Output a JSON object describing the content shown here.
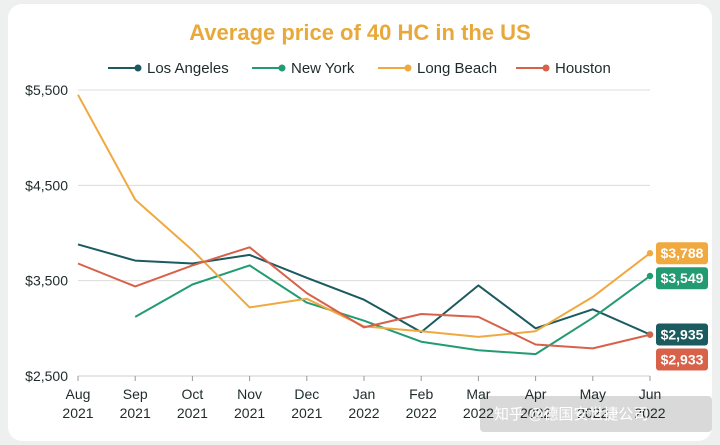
{
  "chart_data": {
    "type": "line",
    "title": "Average price of 40 HC in the US",
    "xlabel": "",
    "ylabel": "",
    "categories": [
      [
        "Aug",
        "2021"
      ],
      [
        "Sep",
        "2021"
      ],
      [
        "Oct",
        "2021"
      ],
      [
        "Nov",
        "2021"
      ],
      [
        "Dec",
        "2021"
      ],
      [
        "Jan",
        "2022"
      ],
      [
        "Feb",
        "2022"
      ],
      [
        "Mar",
        "2022"
      ],
      [
        "Apr",
        "2022"
      ],
      [
        "May",
        "2022"
      ],
      [
        "Jun",
        "2022"
      ]
    ],
    "ylim": [
      2500,
      5500
    ],
    "yticks": [
      2500,
      3500,
      4500,
      5500
    ],
    "ytick_labels": [
      "$2,500",
      "$3,500",
      "$4,500",
      "$5,500"
    ],
    "grid": "horizontal",
    "legend_position": "top",
    "series": [
      {
        "name": "Los Angeles",
        "color": "#1b5a5f",
        "values": [
          3880,
          3710,
          3680,
          3770,
          3530,
          3300,
          2960,
          3450,
          3000,
          3200,
          2935
        ],
        "end_label": "$2,935"
      },
      {
        "name": "New York",
        "color": "#239b72",
        "values": [
          null,
          3120,
          3460,
          3660,
          3270,
          3080,
          2860,
          2770,
          2730,
          3110,
          3549
        ],
        "end_label": "$3,549"
      },
      {
        "name": "Long Beach",
        "color": "#efa93f",
        "values": [
          5450,
          4350,
          3820,
          3220,
          3310,
          3020,
          2970,
          2910,
          2970,
          3330,
          3788
        ],
        "end_label": "$3,788"
      },
      {
        "name": "Houston",
        "color": "#d8614a",
        "values": [
          3680,
          3440,
          3660,
          3850,
          3370,
          3010,
          3150,
          3120,
          2830,
          2790,
          2933
        ],
        "end_label": "$2,933"
      }
    ]
  },
  "watermark": "知乎 @德国安世捷公司"
}
